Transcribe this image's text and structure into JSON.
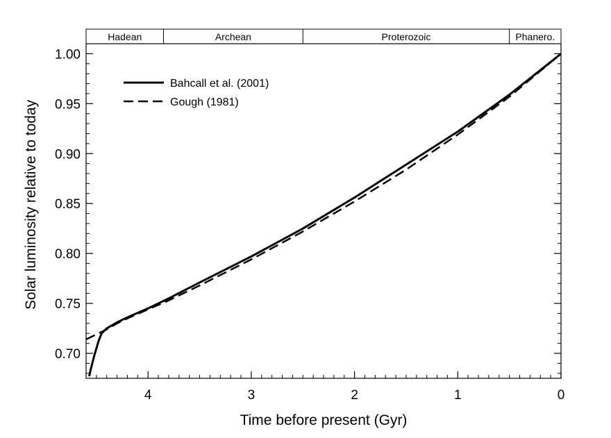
{
  "chart_data": {
    "type": "line",
    "title": "",
    "xlabel": "Time before present  (Gyr)",
    "ylabel": "Solar luminosity relative to today",
    "xlim": [
      4.6,
      0
    ],
    "ylim": [
      0.675,
      1.01
    ],
    "xticks": [
      4,
      3,
      2,
      1,
      0
    ],
    "xtick_labels": [
      "4",
      "3",
      "2",
      "1",
      "0"
    ],
    "yticks": [
      0.7,
      0.75,
      0.8,
      0.85,
      0.9,
      0.95,
      1.0
    ],
    "ytick_labels": [
      "0.70",
      "0.75",
      "0.80",
      "0.85",
      "0.90",
      "0.95",
      "1.00"
    ],
    "grid": false,
    "legend": "top-left",
    "eras": [
      {
        "name": "Hadean",
        "start": 4.6,
        "end": 3.85
      },
      {
        "name": "Archean",
        "start": 3.85,
        "end": 2.5
      },
      {
        "name": "Proterozoic",
        "start": 2.5,
        "end": 0.5
      },
      {
        "name": "Phanero.",
        "start": 0.5,
        "end": 0
      }
    ],
    "series": [
      {
        "name": "Bahcall et al. (2001)",
        "style": "solid",
        "color": "#000000",
        "x": [
          4.57,
          4.55,
          4.52,
          4.48,
          4.45,
          4.4,
          4.3,
          4.2,
          4.0,
          3.8,
          3.5,
          3.0,
          2.5,
          2.0,
          1.5,
          1.0,
          0.5,
          0.0
        ],
        "y": [
          0.677,
          0.686,
          0.698,
          0.712,
          0.72,
          0.725,
          0.731,
          0.736,
          0.745,
          0.755,
          0.771,
          0.797,
          0.825,
          0.856,
          0.889,
          0.922,
          0.959,
          1.0
        ]
      },
      {
        "name": "Gough (1981)",
        "style": "dashed",
        "color": "#000000",
        "x": [
          4.6,
          4.5,
          4.4,
          4.3,
          4.2,
          4.0,
          3.8,
          3.5,
          3.0,
          2.5,
          2.0,
          1.5,
          1.0,
          0.5,
          0.0
        ],
        "y": [
          0.714,
          0.719,
          0.724,
          0.73,
          0.735,
          0.744,
          0.753,
          0.768,
          0.794,
          0.822,
          0.852,
          0.884,
          0.919,
          0.957,
          1.0
        ]
      }
    ]
  }
}
